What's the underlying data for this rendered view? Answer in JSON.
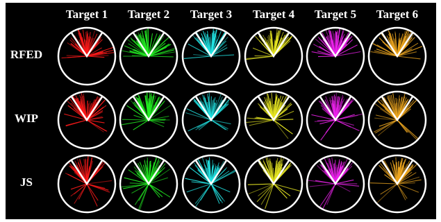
{
  "columns": [
    {
      "label": "Target 1",
      "color": "#ff1a1a"
    },
    {
      "label": "Target 2",
      "color": "#22ee22"
    },
    {
      "label": "Target 3",
      "color": "#22e6e6"
    },
    {
      "label": "Target 4",
      "color": "#e6e622"
    },
    {
      "label": "Target 5",
      "color": "#ee22ee"
    },
    {
      "label": "Target 6",
      "color": "#f0a820"
    }
  ],
  "rows": [
    {
      "label": "RFED",
      "spread": 0.55
    },
    {
      "label": "WIP",
      "spread": 0.8
    },
    {
      "label": "JS",
      "spread": 0.9
    }
  ],
  "circle_color": "#ffffff",
  "target_marker_color": "#ffffff",
  "background": "#000000"
}
